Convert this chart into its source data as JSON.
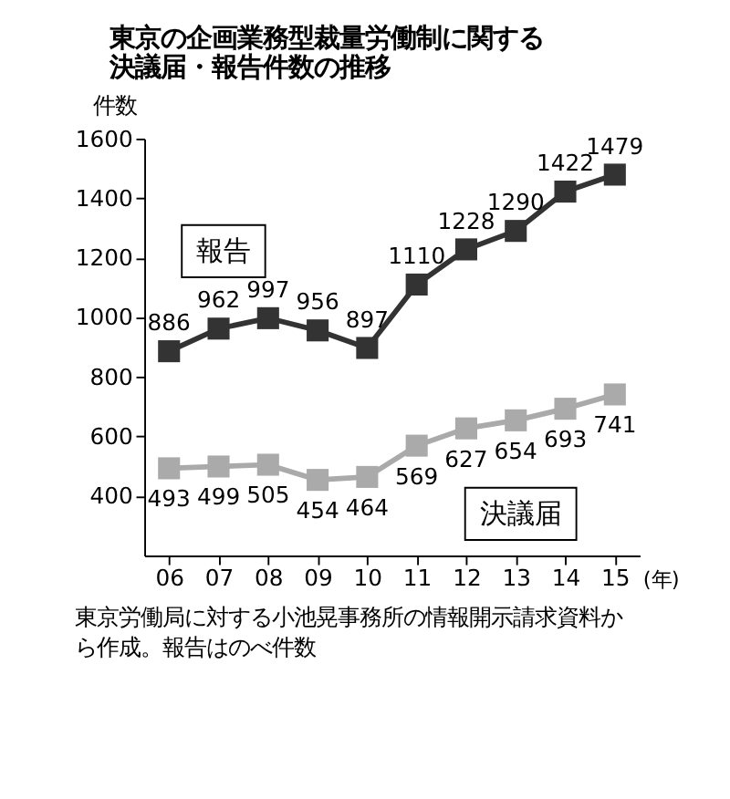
{
  "chart_data": {
    "type": "line",
    "title": "東京の企画業務型裁量労働制に関する決議届・報告件数の推移",
    "ylabel": "件数",
    "xlabel": "(年)",
    "categories": [
      "06",
      "07",
      "08",
      "09",
      "10",
      "11",
      "12",
      "13",
      "14",
      "15"
    ],
    "series": [
      {
        "name": "報告",
        "color": "#333333",
        "values": [
          886,
          962,
          997,
          956,
          897,
          1110,
          1228,
          1290,
          1422,
          1479
        ]
      },
      {
        "name": "決議届",
        "color": "#aaaaaa",
        "values": [
          493,
          499,
          505,
          454,
          464,
          569,
          627,
          654,
          693,
          741
        ]
      }
    ],
    "ylim": [
      200,
      1600
    ],
    "yticks": [
      400,
      600,
      800,
      1000,
      1200,
      1400,
      1600
    ],
    "marker": "square",
    "line_style": "solid",
    "data_labels": true,
    "legend": false,
    "grid": false,
    "annotations": [
      "東京労働局に対する小池晃事務所の情報開示請求資料から作成。報告はのべ件数"
    ]
  }
}
